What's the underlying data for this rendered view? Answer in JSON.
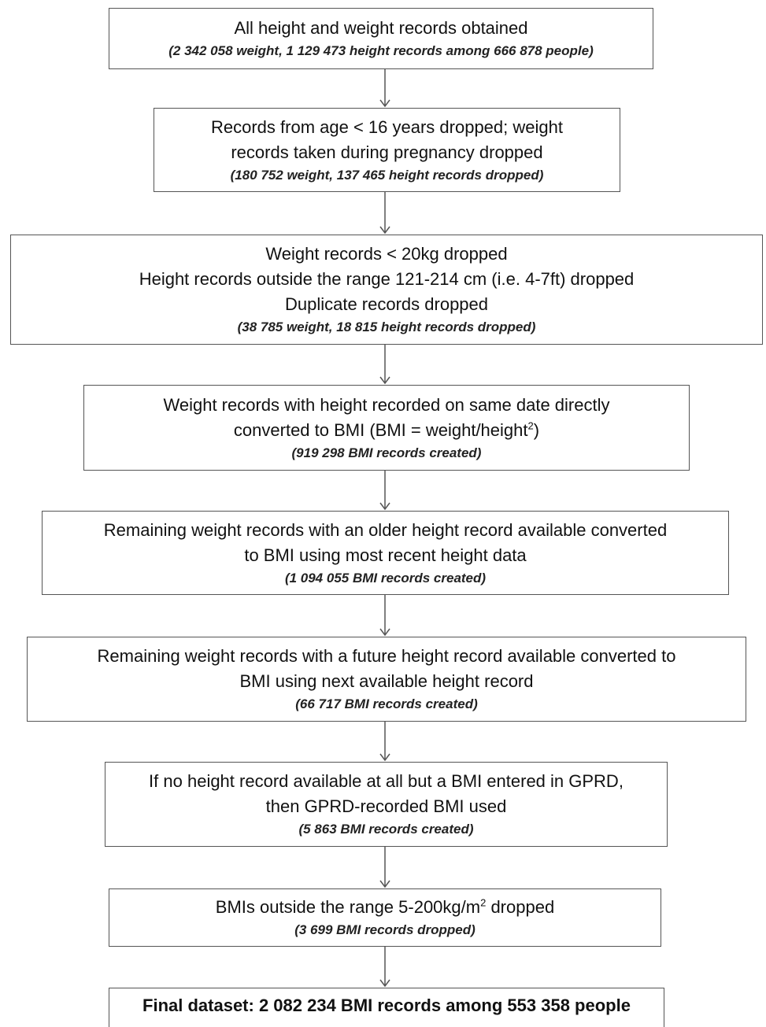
{
  "steps": [
    {
      "lines": [
        "All height and weight records obtained"
      ],
      "note": "(2 342 058 weight, 1 129 473 height records among 666 878 people)"
    },
    {
      "lines": [
        "Records from age < 16 years dropped; weight",
        "records taken during pregnancy dropped"
      ],
      "note": "(180 752 weight, 137 465 height records dropped)"
    },
    {
      "lines": [
        "Weight records < 20kg dropped",
        "Height records outside the range 121-214 cm (i.e. 4-7ft) dropped",
        "Duplicate records dropped"
      ],
      "note": "(38 785 weight, 18 815 height records dropped)"
    },
    {
      "lines": [
        "Weight records  with height recorded on same date directly",
        "converted to BMI (BMI = weight/height",
        ")"
      ],
      "superscript": "2",
      "note": "(919 298 BMI records created)"
    },
    {
      "lines": [
        "Remaining weight records  with an older height record available converted",
        "to BMI using most recent height data"
      ],
      "note": "(1 094 055 BMI records created)"
    },
    {
      "lines": [
        "Remaining weight records  with a future height record available converted to",
        "BMI using next available height record"
      ],
      "note": "(66 717 BMI records created)"
    },
    {
      "lines": [
        "If no height record available at all but a BMI entered in GPRD,",
        "then GPRD-recorded BMI used"
      ],
      "note": "(5 863 BMI records created)"
    },
    {
      "lines": [
        "BMIs outside the range 5-200kg/m",
        " dropped"
      ],
      "superscript": "2",
      "note": "(3 699 BMI records dropped)"
    }
  ],
  "final": {
    "text": "Final dataset: 2 082 234 BMI records among 553 358 people"
  }
}
